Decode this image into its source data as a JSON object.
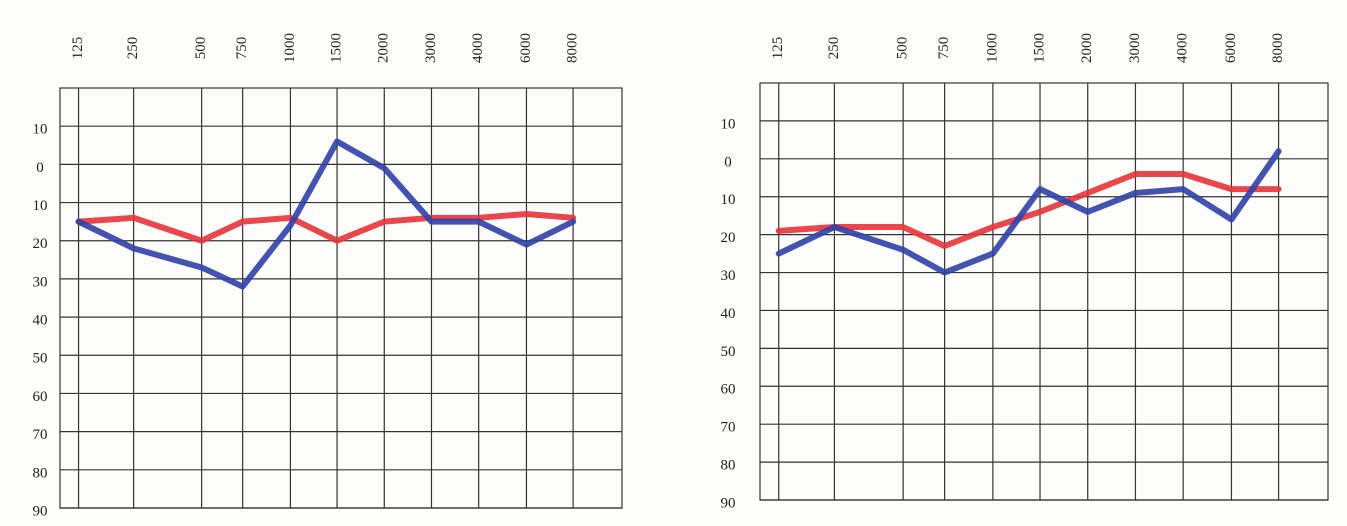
{
  "chart_data": [
    {
      "type": "line",
      "categories": [
        "125",
        "250",
        "500",
        "750",
        "1000",
        "1500",
        "2000",
        "3000",
        "4000",
        "6000",
        "8000"
      ],
      "ylim": [
        -20,
        90
      ],
      "yticks": [
        {
          "value": -10,
          "label": "10"
        },
        0,
        10,
        20,
        30,
        40,
        50,
        60,
        70,
        80,
        90
      ],
      "grid": true,
      "series": [
        {
          "color": "#e8333a",
          "values": [
            15,
            14,
            20,
            15,
            14,
            20,
            15,
            14,
            14,
            13,
            14
          ]
        },
        {
          "color": "#3040a8",
          "values": [
            15,
            22,
            27,
            32,
            16,
            -6,
            1,
            15,
            15,
            21,
            15
          ]
        }
      ]
    },
    {
      "type": "line",
      "categories": [
        "125",
        "250",
        "500",
        "750",
        "1000",
        "1500",
        "2000",
        "3000",
        "4000",
        "6000",
        "8000"
      ],
      "ylim": [
        -20,
        90
      ],
      "yticks": [
        {
          "value": -10,
          "label": "10"
        },
        0,
        10,
        20,
        30,
        40,
        50,
        60,
        70,
        80,
        90
      ],
      "grid": true,
      "series": [
        {
          "color": "#e8333a",
          "values": [
            19,
            18,
            18,
            23,
            18,
            14,
            9,
            4,
            4,
            8,
            8
          ]
        },
        {
          "color": "#3040a8",
          "values": [
            25,
            18,
            24,
            30,
            25,
            8,
            14,
            9,
            8,
            16,
            -2
          ]
        }
      ]
    }
  ]
}
